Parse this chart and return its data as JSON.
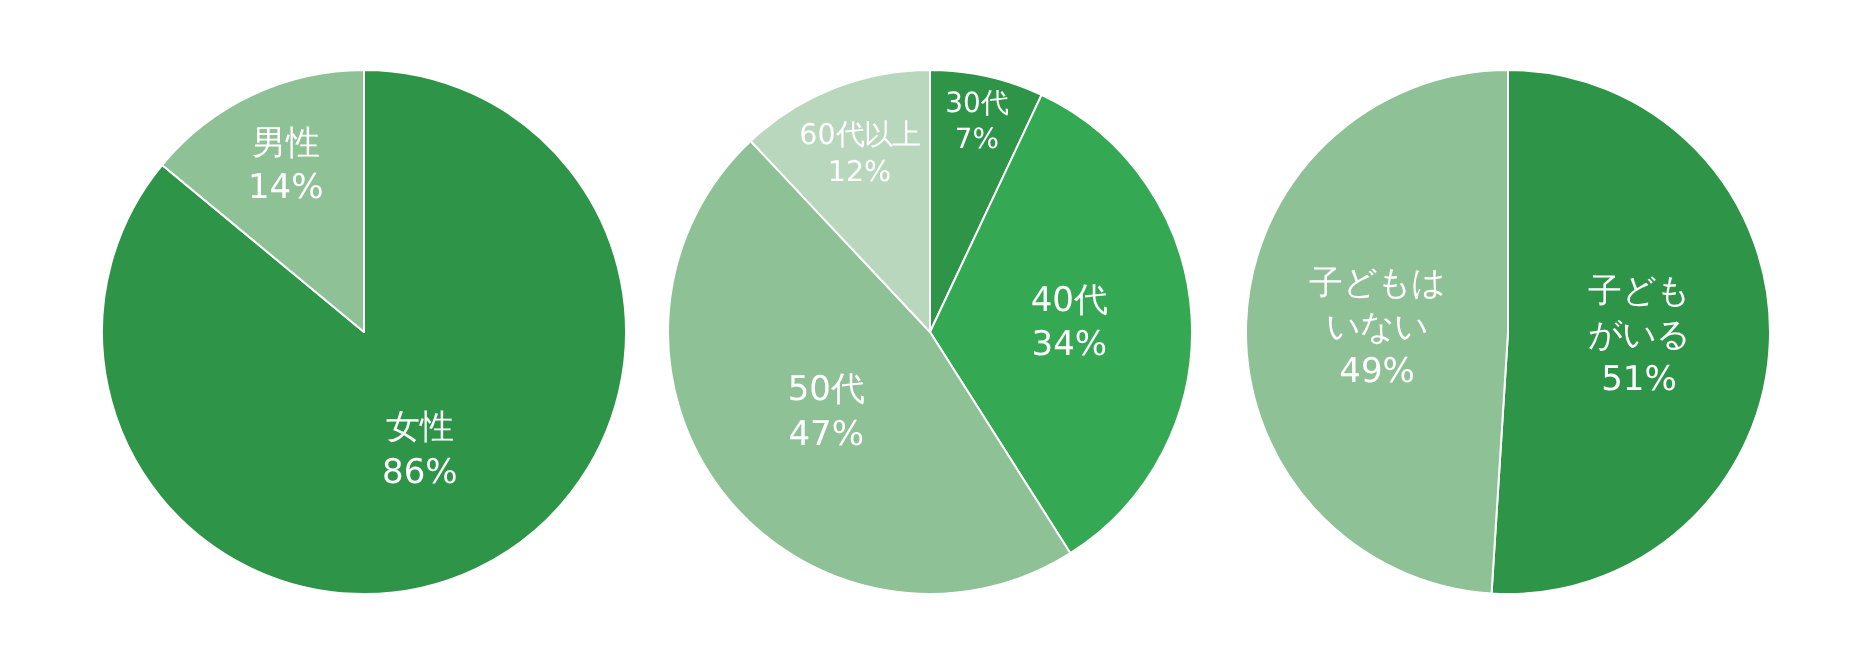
{
  "chart_data": [
    {
      "type": "pie",
      "categories": [
        "女性",
        "男性"
      ],
      "values": [
        86,
        14
      ],
      "value_labels": [
        "86%",
        "14%"
      ],
      "colors": [
        "#2e9448",
        "#8fc196"
      ]
    },
    {
      "type": "pie",
      "categories": [
        "30代",
        "40代",
        "50代",
        "60代以上"
      ],
      "values": [
        7,
        34,
        47,
        12
      ],
      "value_labels": [
        "7%",
        "34%",
        "47%",
        "12%"
      ],
      "colors": [
        "#2e9448",
        "#34a853",
        "#8fc196",
        "#b9d7bc"
      ]
    },
    {
      "type": "pie",
      "categories": [
        "子どもがいる",
        "子どもはいない"
      ],
      "values": [
        51,
        49
      ],
      "value_labels": [
        "51%",
        "49%"
      ],
      "colors": [
        "#2e9448",
        "#8fc196"
      ]
    }
  ]
}
